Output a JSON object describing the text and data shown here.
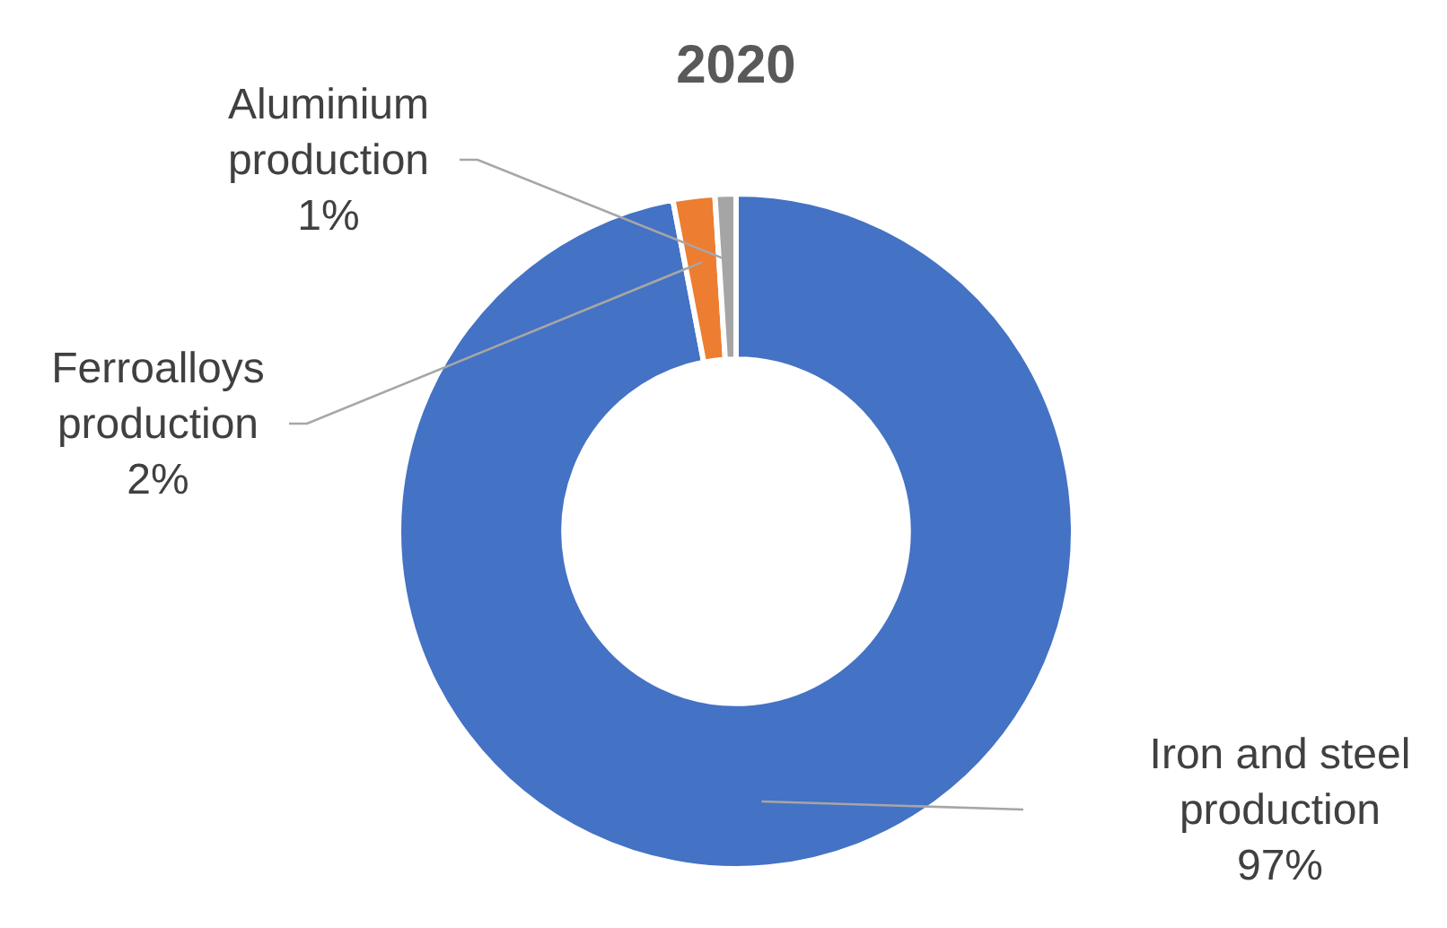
{
  "chart_data": {
    "type": "donut",
    "title": "2020",
    "categories": [
      "Iron and steel production",
      "Ferroalloys production",
      "Aluminium production"
    ],
    "values": [
      97,
      2,
      1
    ],
    "colors": [
      "#4472c4",
      "#ed7d31",
      "#a5a5a5"
    ],
    "value_labels": [
      "97%",
      "2%",
      "1%"
    ]
  }
}
